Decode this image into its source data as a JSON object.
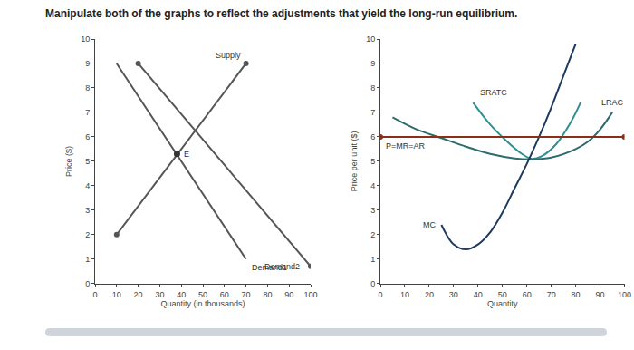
{
  "heading": "Manipulate both of the graphs to reflect the adjustments that yield the long-run equilibrium.",
  "chart_data": [
    {
      "type": "line",
      "x_label": "Quantity (in thousands)",
      "y_label": "Price ($)",
      "xlim": [
        0,
        100
      ],
      "ylim": [
        0,
        10
      ],
      "xticks": [
        0,
        10,
        20,
        30,
        40,
        50,
        60,
        70,
        80,
        90,
        100
      ],
      "yticks": [
        0,
        1,
        2,
        3,
        4,
        5,
        6,
        7,
        8,
        9,
        10
      ],
      "grid": false,
      "series": [
        {
          "name": "Supply",
          "color": "#555555",
          "marker": "circle",
          "x": [
            10,
            70
          ],
          "values": [
            2,
            9
          ]
        },
        {
          "name": "Demand1",
          "color": "#555555",
          "marker": "none",
          "x": [
            10,
            70
          ],
          "values": [
            9,
            1
          ]
        },
        {
          "name": "Demand2",
          "color": "#555555",
          "marker": "circle",
          "x": [
            20,
            100
          ],
          "values": [
            9,
            0.7
          ]
        }
      ],
      "points": [
        {
          "label": "E",
          "x": 38,
          "y": 5.3,
          "color": "#333333"
        }
      ]
    },
    {
      "type": "line",
      "x_label": "Quantity",
      "y_label": "Price per unit ($)",
      "xlim": [
        0,
        100
      ],
      "ylim": [
        0,
        10
      ],
      "xticks": [
        0,
        10,
        20,
        30,
        40,
        50,
        60,
        70,
        80,
        90,
        100
      ],
      "yticks": [
        0,
        1,
        2,
        3,
        4,
        5,
        6,
        7,
        8,
        9,
        10
      ],
      "grid": false,
      "series": [
        {
          "name": "SRATC",
          "color": "#2f8f92",
          "marker": "none",
          "x": [
            38,
            45,
            52,
            58,
            62,
            66,
            72,
            78,
            82
          ],
          "values": [
            7.4,
            6.5,
            5.8,
            5.3,
            5.1,
            5.2,
            5.7,
            6.6,
            7.4
          ]
        },
        {
          "name": "LRAC",
          "color": "#2e6b6e",
          "marker": "none",
          "x": [
            5,
            15,
            25,
            35,
            45,
            55,
            62,
            70,
            80,
            85,
            90,
            95
          ],
          "values": [
            6.8,
            6.3,
            5.95,
            5.6,
            5.3,
            5.12,
            5.08,
            5.15,
            5.5,
            5.8,
            6.3,
            7.0
          ]
        },
        {
          "name": "MC",
          "color": "#1f3a5f",
          "marker": "none",
          "x": [
            25,
            30,
            35,
            40,
            45,
            50,
            55,
            60,
            65,
            70,
            75,
            80
          ],
          "values": [
            2.4,
            1.6,
            1.4,
            1.6,
            2.1,
            2.9,
            3.9,
            4.9,
            6.0,
            7.2,
            8.5,
            9.8
          ]
        },
        {
          "name": "P=MR=AR",
          "color": "#8b2e1a",
          "marker": "circle",
          "x": [
            0,
            100
          ],
          "values": [
            6,
            6
          ]
        }
      ]
    }
  ]
}
